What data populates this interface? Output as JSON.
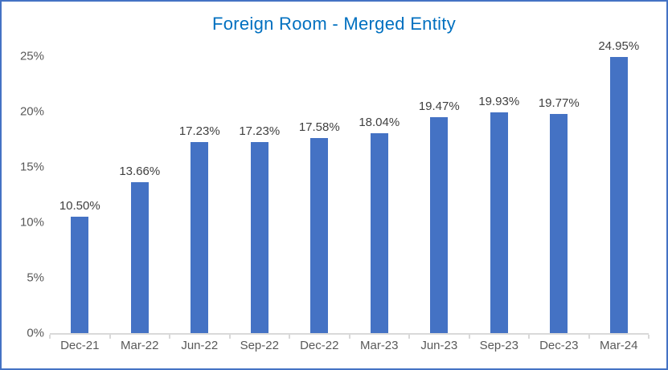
{
  "colors": {
    "bar": "#4472C4",
    "border": "#4472C4",
    "title": "#0070C0",
    "axis_label": "#595959",
    "data_label": "#404040",
    "axis_line": "#D9D9D9"
  },
  "chart_data": {
    "type": "bar",
    "title": "Foreign Room - Merged Entity",
    "categories": [
      "Dec-21",
      "Mar-22",
      "Jun-22",
      "Sep-22",
      "Dec-22",
      "Mar-23",
      "Jun-23",
      "Sep-23",
      "Dec-23",
      "Mar-24"
    ],
    "values": [
      10.5,
      13.66,
      17.23,
      17.23,
      17.58,
      18.04,
      19.47,
      19.93,
      19.77,
      24.95
    ],
    "data_labels": [
      "10.50%",
      "13.66%",
      "17.23%",
      "17.23%",
      "17.58%",
      "18.04%",
      "19.47%",
      "19.93%",
      "19.77%",
      "24.95%"
    ],
    "xlabel": "",
    "ylabel": "",
    "ylim": [
      0,
      25
    ],
    "y_ticks": [
      "0%",
      "5%",
      "10%",
      "15%",
      "20%",
      "25%"
    ],
    "y_tick_values": [
      0,
      5,
      10,
      15,
      20,
      25
    ],
    "grid": false,
    "legend": "none"
  }
}
